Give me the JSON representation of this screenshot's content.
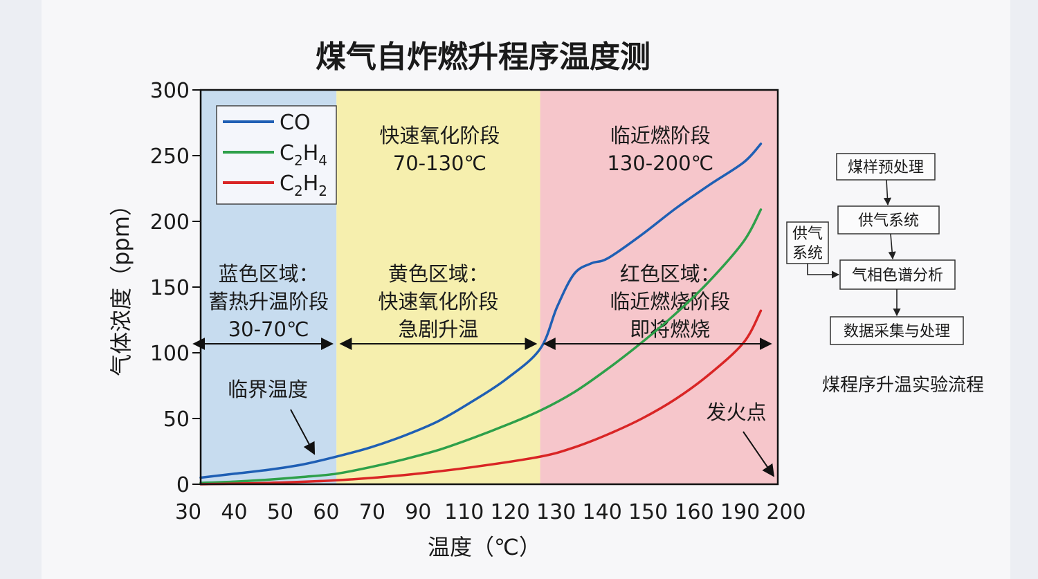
{
  "colors": {
    "co": "#1f5fb4",
    "c2h4": "#2ea04a",
    "c2h2": "#d92525",
    "region_blue": "#c7dcef",
    "region_yellow": "#f6efae",
    "region_red": "#f6c6cb"
  },
  "chart_data": {
    "type": "line",
    "title": "煤气自炸燃升程序温度测",
    "xlabel": "温度（℃）",
    "ylabel": "气体浓度（ppm）",
    "xlim": [
      30,
      200
    ],
    "ylim": [
      0,
      300
    ],
    "x_ticks": [
      "30",
      "40",
      "50",
      "60",
      "70",
      "90",
      "110",
      "120",
      "130",
      "140",
      "150",
      "160",
      "190",
      "200"
    ],
    "y_ticks": [
      "0",
      "50",
      "100",
      "150",
      "200",
      "250",
      "300"
    ],
    "legend": {
      "placement": "top-left",
      "entries": [
        {
          "key": "co",
          "main": "CO",
          "sub1": "",
          "mid": "",
          "sub2": ""
        },
        {
          "key": "c2h4",
          "main": "C",
          "sub1": "2",
          "mid": "H",
          "sub2": "4"
        },
        {
          "key": "c2h2",
          "main": "C",
          "sub1": "2",
          "mid": "H",
          "sub2": "2"
        }
      ]
    },
    "series": [
      {
        "name": "CO",
        "color_key": "co",
        "points": [
          [
            30,
            5
          ],
          [
            40,
            8
          ],
          [
            50,
            11
          ],
          [
            60,
            15
          ],
          [
            70,
            21
          ],
          [
            80,
            28
          ],
          [
            90,
            37
          ],
          [
            100,
            48
          ],
          [
            110,
            63
          ],
          [
            120,
            80
          ],
          [
            130,
            103
          ],
          [
            135,
            135
          ],
          [
            140,
            160
          ],
          [
            145,
            168
          ],
          [
            150,
            172
          ],
          [
            160,
            190
          ],
          [
            170,
            210
          ],
          [
            180,
            228
          ],
          [
            190,
            245
          ],
          [
            195,
            259
          ]
        ]
      },
      {
        "name": "C2H4",
        "color_key": "c2h4",
        "points": [
          [
            30,
            1
          ],
          [
            40,
            2
          ],
          [
            50,
            3.5
          ],
          [
            60,
            5.5
          ],
          [
            70,
            8
          ],
          [
            80,
            13
          ],
          [
            90,
            19
          ],
          [
            100,
            26
          ],
          [
            110,
            35
          ],
          [
            120,
            45
          ],
          [
            130,
            56
          ],
          [
            140,
            70
          ],
          [
            150,
            88
          ],
          [
            160,
            108
          ],
          [
            170,
            130
          ],
          [
            180,
            155
          ],
          [
            190,
            185
          ],
          [
            195,
            209
          ]
        ]
      },
      {
        "name": "C2H2",
        "color_key": "c2h2",
        "points": [
          [
            30,
            0
          ],
          [
            50,
            1
          ],
          [
            70,
            3
          ],
          [
            90,
            7
          ],
          [
            110,
            13
          ],
          [
            130,
            21
          ],
          [
            140,
            28
          ],
          [
            150,
            38
          ],
          [
            160,
            50
          ],
          [
            170,
            65
          ],
          [
            180,
            84
          ],
          [
            190,
            108
          ],
          [
            195,
            132
          ]
        ]
      }
    ],
    "regions": [
      {
        "color_key": "region_blue",
        "x": [
          30,
          70
        ],
        "lines": [
          "蓝色区域：",
          "蓄热升温阶段",
          "30-70℃"
        ]
      },
      {
        "color_key": "region_yellow",
        "x": [
          70,
          130
        ],
        "top_lines": [
          "快速氧化阶段",
          "70-130℃"
        ],
        "lines": [
          "黄色区域：",
          "快速氧化阶段",
          "急剧升温"
        ]
      },
      {
        "color_key": "region_red",
        "x": [
          130,
          200
        ],
        "top_lines": [
          "临近燃阶段",
          "130-200℃"
        ],
        "lines": [
          "红色区域：",
          "临近燃烧阶段",
          "即将燃烧"
        ]
      }
    ],
    "annotations": [
      {
        "text": "临界温度",
        "target": [
          70,
          21
        ]
      },
      {
        "text": "发火点",
        "target": [
          200,
          2
        ]
      }
    ]
  },
  "flowchart": {
    "steps": [
      "煤样预处理",
      "供气系统",
      "气相色谱分析",
      "数据采集与处理"
    ],
    "side_box": [
      "供气",
      "系统"
    ],
    "caption": "煤程序升温实验流程"
  }
}
